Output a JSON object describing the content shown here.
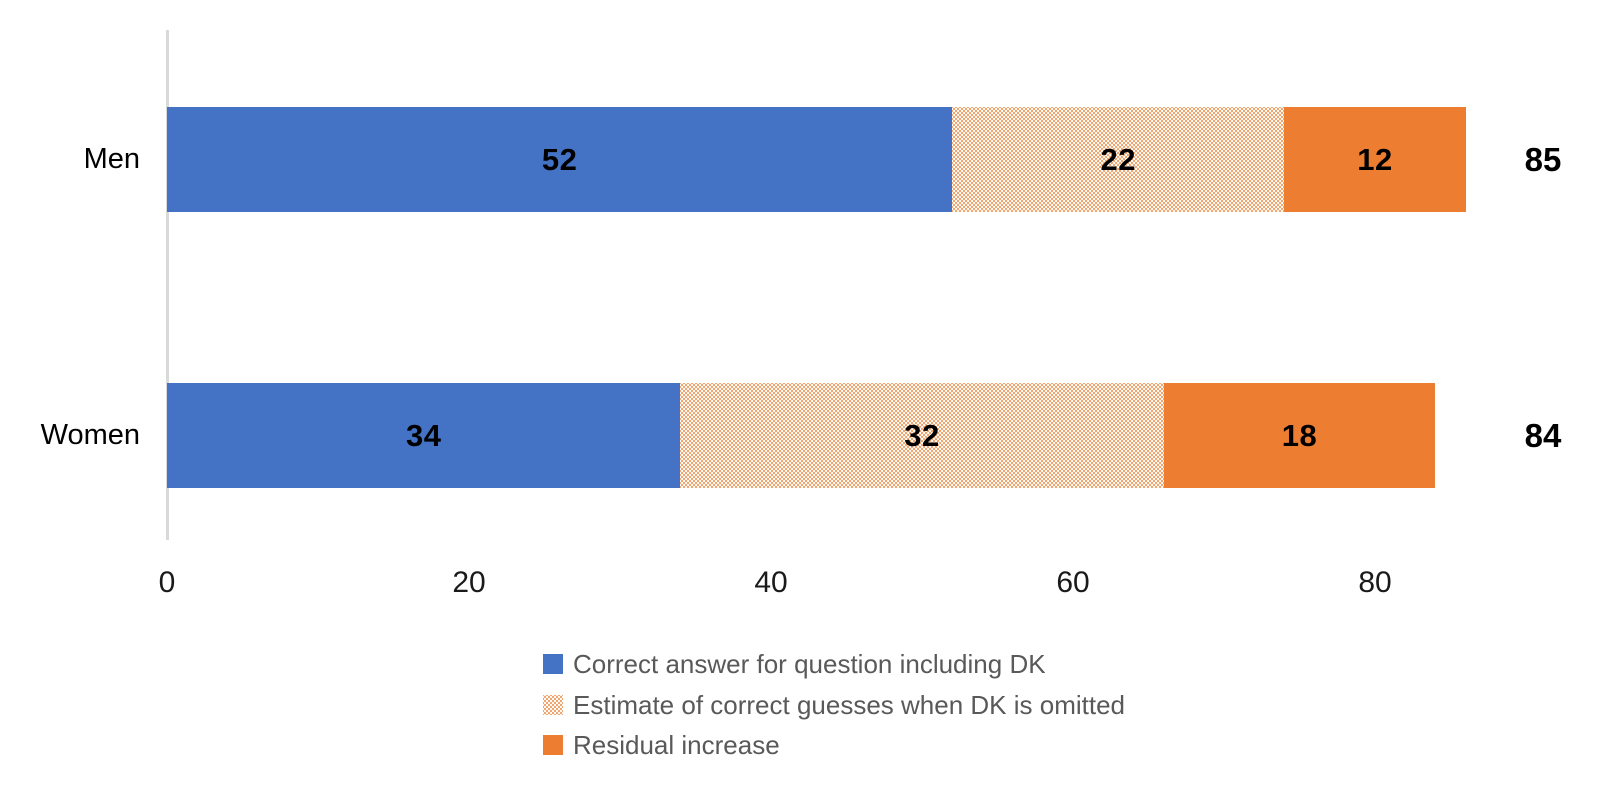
{
  "page": {
    "background": "#FFFFFF"
  },
  "chart_data": {
    "type": "bar",
    "orientation": "horizontal",
    "stacked": true,
    "title": "",
    "xlabel": "",
    "ylabel": "",
    "categories": [
      "Men",
      "Women"
    ],
    "series": [
      {
        "name": "Correct answer for question including DK",
        "fill": "solid",
        "color": "#4472C4",
        "values": [
          52,
          34
        ]
      },
      {
        "name": "Estimate of correct guesses when DK is omitted",
        "fill": "dotted-pattern",
        "color": "#ED7D31",
        "pattern_background": "#FEF8F3",
        "values": [
          22,
          32
        ]
      },
      {
        "name": "Residual increase",
        "fill": "solid",
        "color": "#ED7D31",
        "values": [
          12,
          18
        ]
      }
    ],
    "stack_total_labels": [
      "85",
      "84"
    ],
    "x_ticks": [
      "0",
      "20",
      "40",
      "60",
      "80"
    ],
    "xlim": [
      0,
      86
    ],
    "grid": false,
    "legend_position": "bottom-left",
    "axis_line_color": "#D9D9D9",
    "data_label_color": "#000000",
    "legend_text_color": "#595959"
  }
}
